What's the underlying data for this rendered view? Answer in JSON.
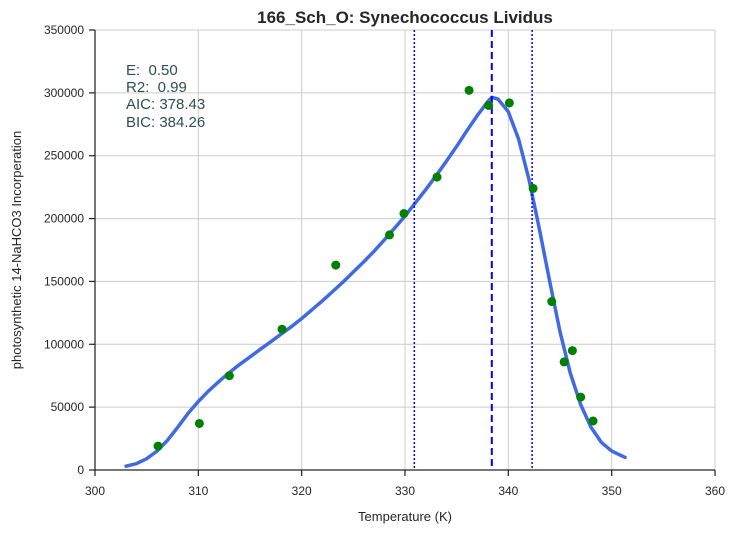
{
  "chart_data": {
    "type": "scatter",
    "title": "166_Sch_O: Synechococcus Lividus",
    "xlabel": "Temperature (K)",
    "ylabel": "photosynthetic 14-NaHCO3 Incorperation",
    "xlim": [
      300,
      360
    ],
    "ylim": [
      0,
      350000
    ],
    "xticks": [
      "300",
      "310",
      "320",
      "330",
      "340",
      "350",
      "360"
    ],
    "yticks": [
      "0",
      "50000",
      "100000",
      "150000",
      "200000",
      "250000",
      "300000",
      "350000"
    ],
    "grid": true,
    "colors": {
      "points": "#008000",
      "fit": "#4169e1",
      "lines": "#0000ff",
      "annotation": "#2f4f4f"
    },
    "annotations": [
      "E:  0.50",
      "R2:  0.99",
      "AIC: 378.43",
      "BIC: 384.26"
    ],
    "points": {
      "x": [
        306.1,
        310.1,
        313.0,
        318.1,
        323.3,
        328.5,
        329.9,
        333.1,
        336.2,
        338.1,
        340.1,
        342.4,
        344.2,
        345.4,
        346.2,
        347.0,
        348.2
      ],
      "y": [
        19000,
        37000,
        75000,
        112000,
        163000,
        187000,
        204000,
        233000,
        302000,
        290000,
        292000,
        224000,
        134000,
        86000,
        95000,
        58000,
        39000
      ]
    },
    "fit_curve": {
      "x": [
        303,
        304,
        305,
        306,
        307,
        308,
        309,
        310,
        311,
        312,
        313,
        314,
        315,
        316,
        317,
        318,
        319,
        320,
        321,
        322,
        323,
        324,
        325,
        326,
        327,
        328,
        329,
        330,
        331,
        332,
        333,
        334,
        335,
        336,
        337,
        338,
        338.4,
        339,
        340,
        341,
        342,
        343,
        344,
        345,
        346,
        347,
        348,
        349,
        350,
        351.3
      ],
      "y": [
        3000,
        5000,
        9000,
        15000,
        23500,
        34000,
        45000,
        54500,
        63000,
        70500,
        77500,
        84000,
        90000,
        96000,
        102000,
        108000,
        114000,
        120500,
        127500,
        134500,
        142000,
        149500,
        157500,
        165500,
        174000,
        183000,
        192500,
        202000,
        212500,
        223000,
        234000,
        245500,
        257500,
        270000,
        282000,
        293000,
        296500,
        295000,
        285000,
        263000,
        231000,
        192000,
        150000,
        110000,
        77000,
        52000,
        34000,
        22000,
        15000,
        10000
      ]
    },
    "peak_line_x": 338.4,
    "bound_lines_x": [
      330.9,
      342.3
    ]
  }
}
